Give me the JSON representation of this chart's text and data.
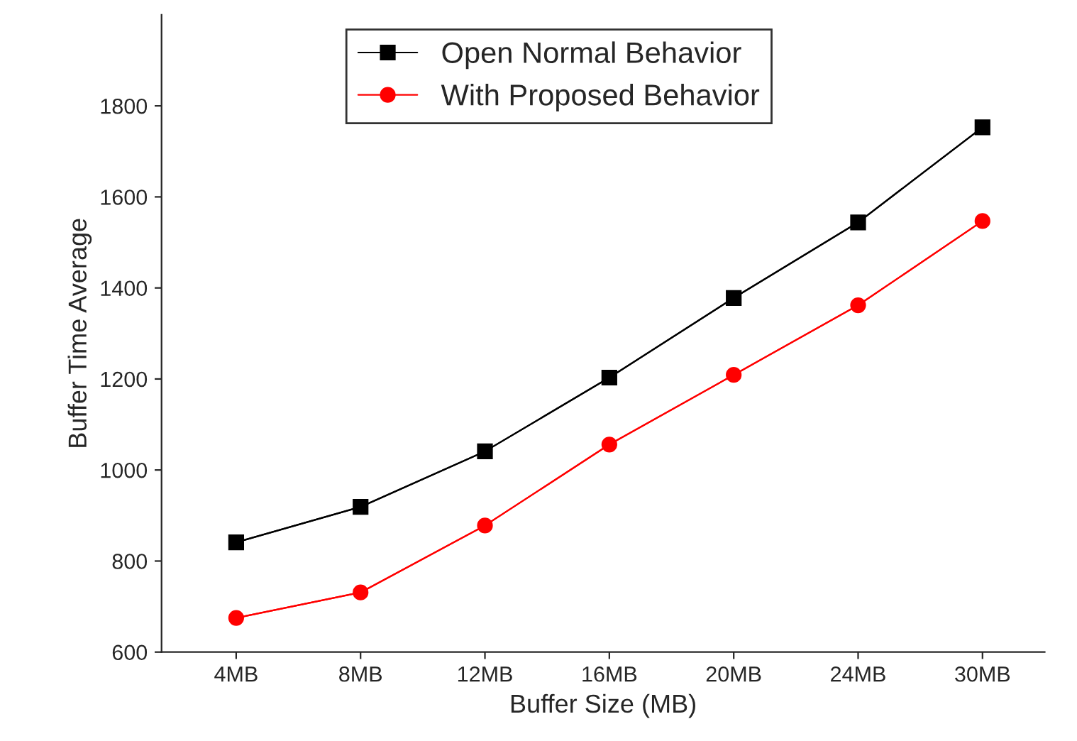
{
  "chart_data": {
    "type": "line",
    "xlabel": "Buffer Size (MB)",
    "ylabel": "Buffer Time Average",
    "categories": [
      "4MB",
      "8MB",
      "12MB",
      "16MB",
      "20MB",
      "24MB",
      "30MB"
    ],
    "series": [
      {
        "name": "Open Normal Behavior",
        "color": "#000000",
        "marker": "square",
        "values": [
          841,
          919,
          1041,
          1203,
          1378,
          1544,
          1753
        ]
      },
      {
        "name": "With Proposed Behavior",
        "color": "#ff0000",
        "marker": "circle",
        "values": [
          675,
          731,
          878,
          1056,
          1209,
          1362,
          1547
        ]
      }
    ],
    "ylim": [
      600,
      2000
    ],
    "yticks": [
      600,
      800,
      1000,
      1200,
      1400,
      1600,
      1800
    ],
    "grid": false,
    "legend": "top",
    "line_style": "solid"
  }
}
